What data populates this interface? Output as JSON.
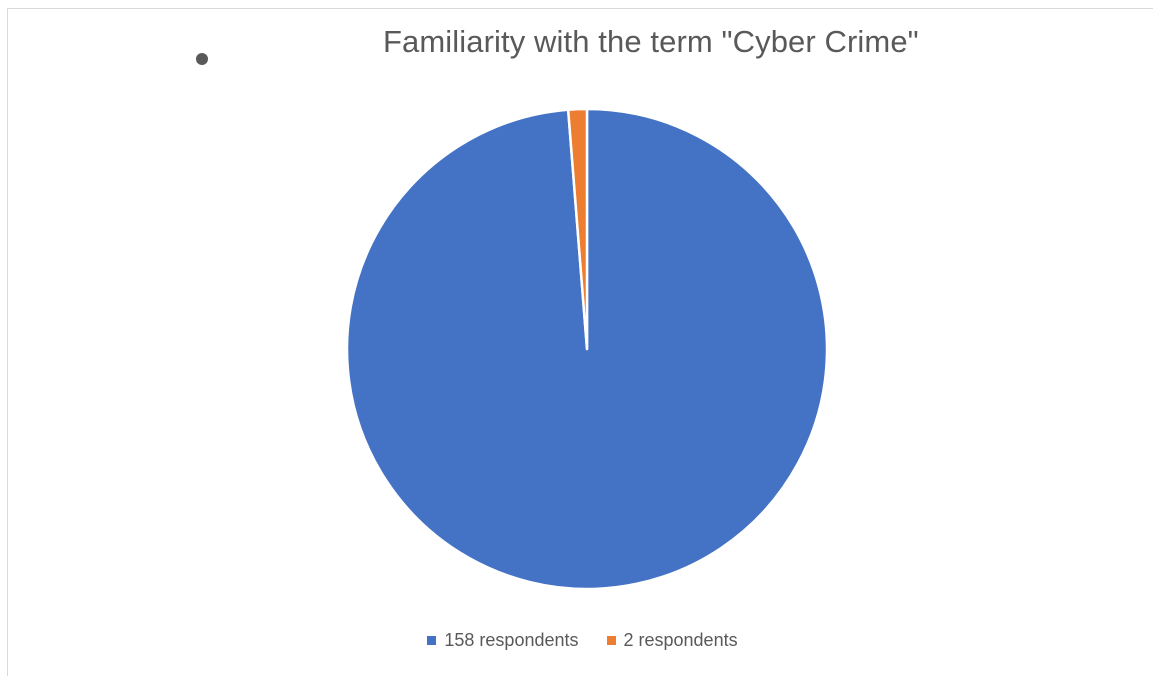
{
  "chart_data": {
    "type": "pie",
    "title": "Familiarity with the term \"Cyber Crime\"",
    "categories": [
      "158 respondents",
      "2 respondents"
    ],
    "values": [
      158,
      2
    ],
    "colors": [
      "#4472C4",
      "#ED7D31"
    ],
    "start_angle_deg": 0,
    "direction": "clockwise",
    "slice_border_color": "#ffffff",
    "legend": {
      "placement": "bottom",
      "entries": [
        "158 respondents",
        "2 respondents"
      ]
    }
  },
  "title_bullet_icon": "bullet-dot-icon"
}
